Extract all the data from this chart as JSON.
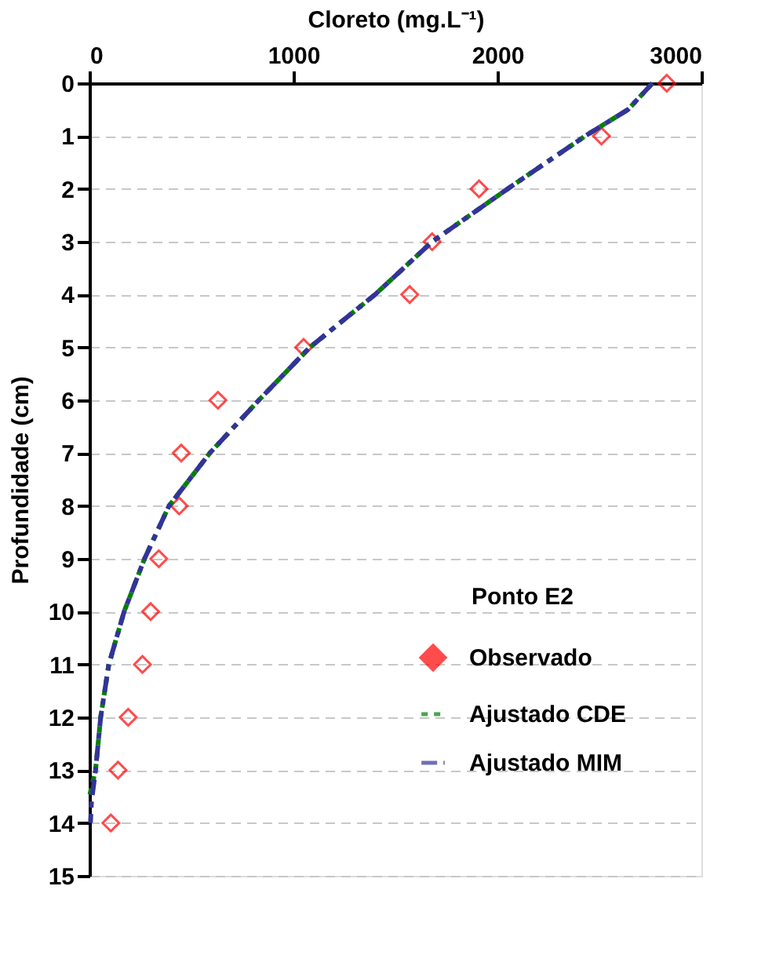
{
  "chart_data": {
    "type": "scatter",
    "xlabel": "Cloreto (mg.L⁻¹)",
    "ylabel": "Profundidade (cm)",
    "legend_title": "Ponto E2",
    "xlim": [
      0,
      3000
    ],
    "xticks": [
      0,
      1000,
      2000,
      3000
    ],
    "ylim": [
      15,
      0
    ],
    "yticks": [
      0,
      1,
      2,
      3,
      4,
      5,
      6,
      7,
      8,
      9,
      10,
      11,
      12,
      13,
      14,
      15
    ],
    "grid": "y",
    "legend": "bottom right",
    "series": [
      {
        "name": "Observado",
        "marker": "diamond",
        "color": "#ff0000",
        "x": [
          2830,
          2510,
          1910,
          1680,
          1570,
          1050,
          630,
          450,
          440,
          340,
          300,
          260,
          190,
          140,
          105
        ],
        "values": [
          0,
          1,
          2,
          3,
          4,
          5,
          6,
          7,
          8,
          9,
          10,
          11,
          12,
          13,
          14
        ]
      },
      {
        "name": "Ajustado CDE",
        "type": "line",
        "line_style": "dotted",
        "color": "#008000",
        "x": [
          2760,
          2640,
          2430,
          2050,
          1680,
          1400,
          1080,
          830,
          590,
          390,
          270,
          170,
          95,
          55,
          30,
          0
        ],
        "values": [
          0,
          0.5,
          1,
          2,
          3,
          4,
          5,
          6,
          7,
          8,
          9,
          10,
          11,
          12,
          13,
          13.5
        ]
      },
      {
        "name": "Ajustado MIM",
        "type": "line",
        "line_style": "dashed",
        "color": "#333399",
        "x": [
          2760,
          2640,
          2430,
          2050,
          1680,
          1400,
          1080,
          830,
          590,
          390,
          270,
          170,
          95,
          55,
          30,
          10,
          5
        ],
        "values": [
          0,
          0.5,
          1,
          2,
          3,
          4,
          5,
          6,
          7,
          8,
          9,
          10,
          11,
          12,
          13,
          13.6,
          14
        ]
      }
    ]
  }
}
